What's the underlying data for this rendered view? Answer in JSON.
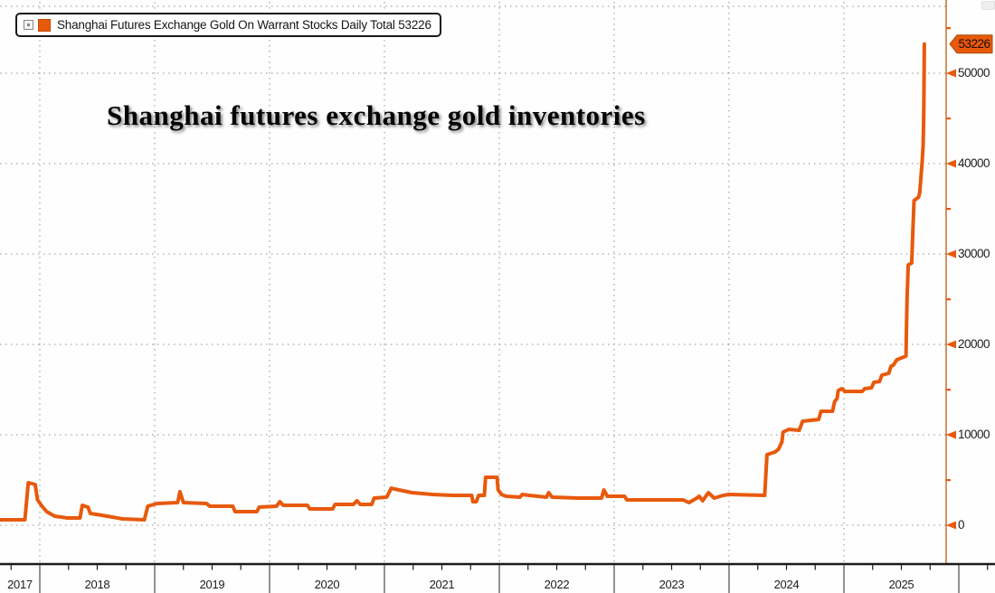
{
  "title": "Shanghai futures exchange gold inventories",
  "legend": {
    "label": "Shanghai Futures Exchange Gold On Warrant Stocks Daily Total 53226"
  },
  "last_value_label": "53226",
  "colors": {
    "series": "#e8590c",
    "axis_spine": "#c2712e",
    "tick_mark": "#e8590c",
    "gridline": "#8f8f8f",
    "bottom_axis": "#1a1a1a",
    "year_divider": "#4a4a4a",
    "tag_fill": "#e8590c",
    "tag_border": "#a84c08"
  },
  "chart_data": {
    "type": "line",
    "title": "Shanghai futures exchange gold inventories",
    "legend_position": "top-left",
    "y_axis_position": "right",
    "grid": "dotted",
    "ylim": [
      0,
      55000
    ],
    "yticks": [
      0,
      10000,
      20000,
      30000,
      40000,
      50000
    ],
    "y_minor_ticks": [
      5000,
      15000,
      25000,
      35000,
      45000,
      55000
    ],
    "x_years": [
      2017,
      2018,
      2019,
      2020,
      2021,
      2022,
      2023,
      2024,
      2025
    ],
    "x_range": [
      2017.65,
      2026.0
    ],
    "last_value": 53226,
    "series": [
      {
        "name": "Shanghai Futures Exchange Gold On Warrant Stocks Daily Total",
        "color": "#e8590c",
        "points": [
          [
            2017.654,
            600
          ],
          [
            2017.87,
            600
          ],
          [
            2017.9,
            4700
          ],
          [
            2017.96,
            4500
          ],
          [
            2017.98,
            2800
          ],
          [
            2018.02,
            2100
          ],
          [
            2018.06,
            1500
          ],
          [
            2018.13,
            1000
          ],
          [
            2018.24,
            800
          ],
          [
            2018.35,
            800
          ],
          [
            2018.37,
            2200
          ],
          [
            2018.42,
            2000
          ],
          [
            2018.44,
            1300
          ],
          [
            2018.54,
            1100
          ],
          [
            2018.72,
            700
          ],
          [
            2018.91,
            600
          ],
          [
            2018.94,
            2100
          ],
          [
            2019.02,
            2400
          ],
          [
            2019.2,
            2500
          ],
          [
            2019.22,
            3700
          ],
          [
            2019.25,
            2500
          ],
          [
            2019.45,
            2400
          ],
          [
            2019.48,
            2100
          ],
          [
            2019.68,
            2100
          ],
          [
            2019.7,
            1500
          ],
          [
            2019.89,
            1500
          ],
          [
            2019.91,
            2000
          ],
          [
            2020.06,
            2100
          ],
          [
            2020.09,
            2600
          ],
          [
            2020.12,
            2200
          ],
          [
            2020.33,
            2200
          ],
          [
            2020.35,
            1800
          ],
          [
            2020.55,
            1800
          ],
          [
            2020.57,
            2300
          ],
          [
            2020.73,
            2300
          ],
          [
            2020.76,
            2700
          ],
          [
            2020.79,
            2300
          ],
          [
            2020.89,
            2300
          ],
          [
            2020.91,
            3000
          ],
          [
            2021.02,
            3100
          ],
          [
            2021.06,
            4100
          ],
          [
            2021.09,
            4000
          ],
          [
            2021.24,
            3600
          ],
          [
            2021.42,
            3400
          ],
          [
            2021.59,
            3300
          ],
          [
            2021.76,
            3300
          ],
          [
            2021.77,
            2600
          ],
          [
            2021.8,
            2600
          ],
          [
            2021.82,
            3300
          ],
          [
            2021.87,
            3300
          ],
          [
            2021.88,
            5300
          ],
          [
            2021.98,
            5300
          ],
          [
            2021.99,
            3900
          ],
          [
            2022.02,
            3400
          ],
          [
            2022.06,
            3200
          ],
          [
            2022.18,
            3100
          ],
          [
            2022.2,
            3400
          ],
          [
            2022.26,
            3300
          ],
          [
            2022.41,
            3100
          ],
          [
            2022.43,
            3600
          ],
          [
            2022.46,
            3100
          ],
          [
            2022.69,
            3000
          ],
          [
            2022.89,
            3000
          ],
          [
            2022.91,
            3900
          ],
          [
            2022.94,
            3200
          ],
          [
            2023.09,
            3200
          ],
          [
            2023.11,
            2800
          ],
          [
            2023.6,
            2800
          ],
          [
            2023.65,
            2500
          ],
          [
            2023.72,
            3000
          ],
          [
            2023.74,
            3200
          ],
          [
            2023.77,
            2700
          ],
          [
            2023.82,
            3600
          ],
          [
            2023.87,
            3000
          ],
          [
            2023.95,
            3300
          ],
          [
            2024.0,
            3400
          ],
          [
            2024.31,
            3300
          ],
          [
            2024.33,
            7800
          ],
          [
            2024.4,
            8100
          ],
          [
            2024.43,
            8400
          ],
          [
            2024.46,
            9200
          ],
          [
            2024.47,
            10300
          ],
          [
            2024.52,
            10600
          ],
          [
            2024.61,
            10500
          ],
          [
            2024.64,
            11500
          ],
          [
            2024.78,
            11700
          ],
          [
            2024.8,
            12600
          ],
          [
            2024.9,
            12600
          ],
          [
            2024.92,
            13700
          ],
          [
            2024.94,
            14000
          ],
          [
            2024.95,
            14900
          ],
          [
            2024.98,
            15100
          ],
          [
            2025.01,
            14800
          ],
          [
            2025.16,
            14800
          ],
          [
            2025.18,
            15100
          ],
          [
            2025.24,
            15200
          ],
          [
            2025.26,
            15800
          ],
          [
            2025.31,
            15900
          ],
          [
            2025.33,
            16600
          ],
          [
            2025.39,
            16800
          ],
          [
            2025.41,
            17600
          ],
          [
            2025.43,
            17700
          ],
          [
            2025.46,
            18300
          ],
          [
            2025.5,
            18500
          ],
          [
            2025.54,
            18700
          ],
          [
            2025.545,
            22100
          ],
          [
            2025.55,
            25100
          ],
          [
            2025.56,
            28800
          ],
          [
            2025.59,
            29000
          ],
          [
            2025.6,
            32600
          ],
          [
            2025.61,
            35900
          ],
          [
            2025.65,
            36300
          ],
          [
            2025.66,
            36800
          ],
          [
            2025.68,
            40100
          ],
          [
            2025.69,
            42100
          ],
          [
            2025.695,
            46100
          ],
          [
            2025.7,
            53226
          ]
        ]
      }
    ]
  }
}
